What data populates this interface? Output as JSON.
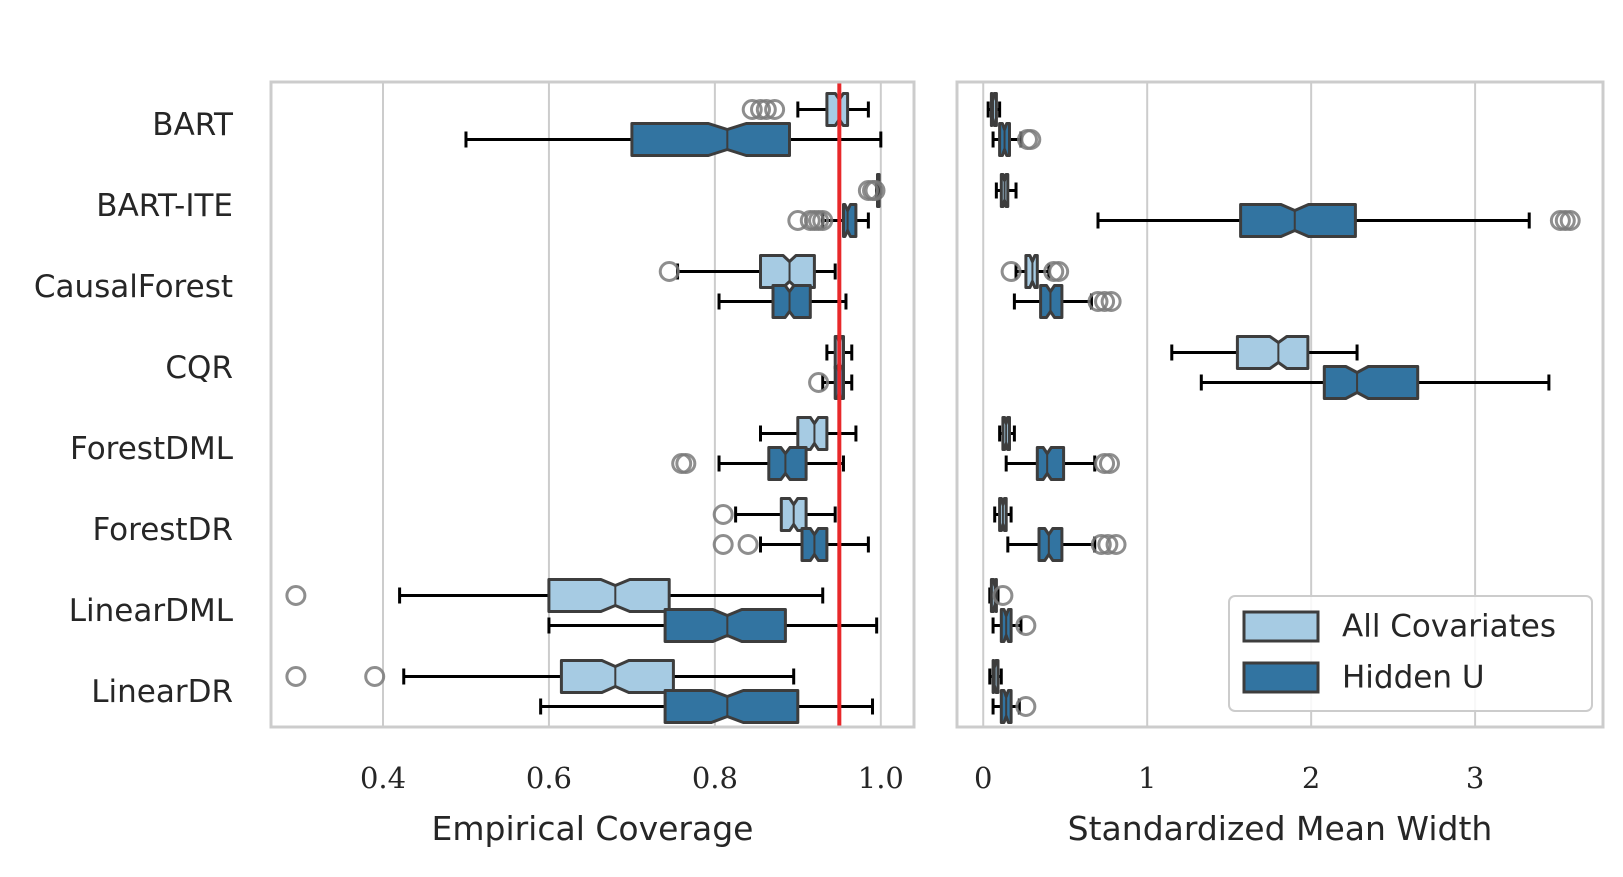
{
  "chart_data": {
    "type": "boxplot",
    "orientation": "horizontal",
    "notched": true,
    "categories": [
      "BART",
      "BART-ITE",
      "CausalForest",
      "CQR",
      "ForestDML",
      "ForestDR",
      "LinearDML",
      "LinearDR"
    ],
    "legend": {
      "position": "bottom-right",
      "entries": [
        {
          "key": "all",
          "label": "All Covariates",
          "color": "#a6cbe3"
        },
        {
          "key": "hidden",
          "label": "Hidden U",
          "color": "#3274a1"
        }
      ]
    },
    "edge_color": "#3d3d3d",
    "outlier_color": "#7a7a7a",
    "panels": [
      {
        "key": "coverage",
        "xlabel": "Empirical Coverage",
        "xlim": [
          0.265,
          1.04
        ],
        "ticks": [
          0.4,
          0.6,
          0.8,
          1.0
        ],
        "tick_labels": [
          "0.4",
          "0.6",
          "0.8",
          "1.0"
        ],
        "reference_line": {
          "x": 0.95,
          "color": "#e8282a"
        },
        "series": [
          {
            "name": "All Covariates",
            "key": "all",
            "boxes": [
              {
                "min": 0.9,
                "q1": 0.935,
                "median": 0.95,
                "q3": 0.96,
                "max": 0.985,
                "outliers": [
                  0.845,
                  0.855,
                  0.862,
                  0.872
                ]
              },
              {
                "min": 0.995,
                "q1": 0.996,
                "median": 0.997,
                "q3": 0.998,
                "max": 0.999,
                "outliers": [
                  0.985,
                  0.99,
                  0.993
                ]
              },
              {
                "min": 0.755,
                "q1": 0.855,
                "median": 0.89,
                "q3": 0.92,
                "max": 0.945,
                "outliers": [
                  0.745
                ]
              },
              {
                "min": 0.935,
                "q1": 0.945,
                "median": 0.95,
                "q3": 0.955,
                "max": 0.965,
                "outliers": []
              },
              {
                "min": 0.855,
                "q1": 0.9,
                "median": 0.92,
                "q3": 0.935,
                "max": 0.97,
                "outliers": []
              },
              {
                "min": 0.825,
                "q1": 0.88,
                "median": 0.895,
                "q3": 0.91,
                "max": 0.945,
                "outliers": [
                  0.81
                ]
              },
              {
                "min": 0.42,
                "q1": 0.6,
                "median": 0.68,
                "q3": 0.745,
                "max": 0.93,
                "outliers": [
                  0.295
                ]
              },
              {
                "min": 0.425,
                "q1": 0.615,
                "median": 0.68,
                "q3": 0.75,
                "max": 0.895,
                "outliers": [
                  0.295,
                  0.39
                ]
              }
            ]
          },
          {
            "name": "Hidden U",
            "key": "hidden",
            "boxes": [
              {
                "min": 0.5,
                "q1": 0.7,
                "median": 0.815,
                "q3": 0.89,
                "max": 1.0,
                "outliers": []
              },
              {
                "min": 0.93,
                "q1": 0.955,
                "median": 0.96,
                "q3": 0.97,
                "max": 0.985,
                "outliers": [
                  0.9,
                  0.915,
                  0.92,
                  0.925,
                  0.93
                ]
              },
              {
                "min": 0.805,
                "q1": 0.87,
                "median": 0.89,
                "q3": 0.915,
                "max": 0.958,
                "outliers": []
              },
              {
                "min": 0.93,
                "q1": 0.945,
                "median": 0.95,
                "q3": 0.955,
                "max": 0.965,
                "outliers": [
                  0.925
                ]
              },
              {
                "min": 0.805,
                "q1": 0.865,
                "median": 0.885,
                "q3": 0.91,
                "max": 0.955,
                "outliers": [
                  0.76,
                  0.765
                ]
              },
              {
                "min": 0.855,
                "q1": 0.905,
                "median": 0.92,
                "q3": 0.935,
                "max": 0.985,
                "outliers": [
                  0.81,
                  0.84
                ]
              },
              {
                "min": 0.6,
                "q1": 0.74,
                "median": 0.815,
                "q3": 0.885,
                "max": 0.995,
                "outliers": []
              },
              {
                "min": 0.59,
                "q1": 0.74,
                "median": 0.815,
                "q3": 0.9,
                "max": 0.99,
                "outliers": []
              }
            ]
          }
        ]
      },
      {
        "key": "width",
        "xlabel": "Standardized Mean Width",
        "xlim": [
          -0.16,
          3.78
        ],
        "ticks": [
          0,
          1,
          2,
          3
        ],
        "tick_labels": [
          "0",
          "1",
          "2",
          "3"
        ],
        "series": [
          {
            "name": "All Covariates",
            "key": "all",
            "boxes": [
              {
                "min": 0.03,
                "q1": 0.05,
                "median": 0.06,
                "q3": 0.08,
                "max": 0.1,
                "outliers": []
              },
              {
                "min": 0.08,
                "q1": 0.11,
                "median": 0.13,
                "q3": 0.15,
                "max": 0.2,
                "outliers": []
              },
              {
                "min": 0.2,
                "q1": 0.26,
                "median": 0.3,
                "q3": 0.33,
                "max": 0.4,
                "outliers": [
                  0.17,
                  0.43,
                  0.46
                ]
              },
              {
                "min": 1.15,
                "q1": 1.55,
                "median": 1.8,
                "q3": 1.98,
                "max": 2.28,
                "outliers": []
              },
              {
                "min": 0.1,
                "q1": 0.12,
                "median": 0.14,
                "q3": 0.16,
                "max": 0.19,
                "outliers": []
              },
              {
                "min": 0.07,
                "q1": 0.1,
                "median": 0.12,
                "q3": 0.14,
                "max": 0.17,
                "outliers": []
              },
              {
                "min": 0.04,
                "q1": 0.05,
                "median": 0.07,
                "q3": 0.08,
                "max": 0.09,
                "outliers": [
                  0.12
                ]
              },
              {
                "min": 0.04,
                "q1": 0.06,
                "median": 0.07,
                "q3": 0.09,
                "max": 0.11,
                "outliers": []
              }
            ]
          },
          {
            "name": "Hidden U",
            "key": "hidden",
            "boxes": [
              {
                "min": 0.06,
                "q1": 0.1,
                "median": 0.13,
                "q3": 0.16,
                "max": 0.23,
                "outliers": [
                  0.27,
                  0.29
                ]
              },
              {
                "min": 0.7,
                "q1": 1.57,
                "median": 1.9,
                "q3": 2.27,
                "max": 3.33,
                "outliers": [
                  3.52,
                  3.55,
                  3.58
                ]
              },
              {
                "min": 0.19,
                "q1": 0.35,
                "median": 0.41,
                "q3": 0.48,
                "max": 0.66,
                "outliers": [
                  0.7,
                  0.74,
                  0.78
                ]
              },
              {
                "min": 1.33,
                "q1": 2.08,
                "median": 2.28,
                "q3": 2.65,
                "max": 3.45,
                "outliers": []
              },
              {
                "min": 0.14,
                "q1": 0.33,
                "median": 0.39,
                "q3": 0.49,
                "max": 0.68,
                "outliers": [
                  0.74,
                  0.77
                ]
              },
              {
                "min": 0.15,
                "q1": 0.34,
                "median": 0.4,
                "q3": 0.48,
                "max": 0.68,
                "outliers": [
                  0.72,
                  0.76,
                  0.81
                ]
              },
              {
                "min": 0.06,
                "q1": 0.11,
                "median": 0.14,
                "q3": 0.17,
                "max": 0.23,
                "outliers": [
                  0.26
                ]
              },
              {
                "min": 0.06,
                "q1": 0.11,
                "median": 0.14,
                "q3": 0.17,
                "max": 0.22,
                "outliers": [
                  0.26
                ]
              }
            ]
          }
        ]
      }
    ]
  }
}
